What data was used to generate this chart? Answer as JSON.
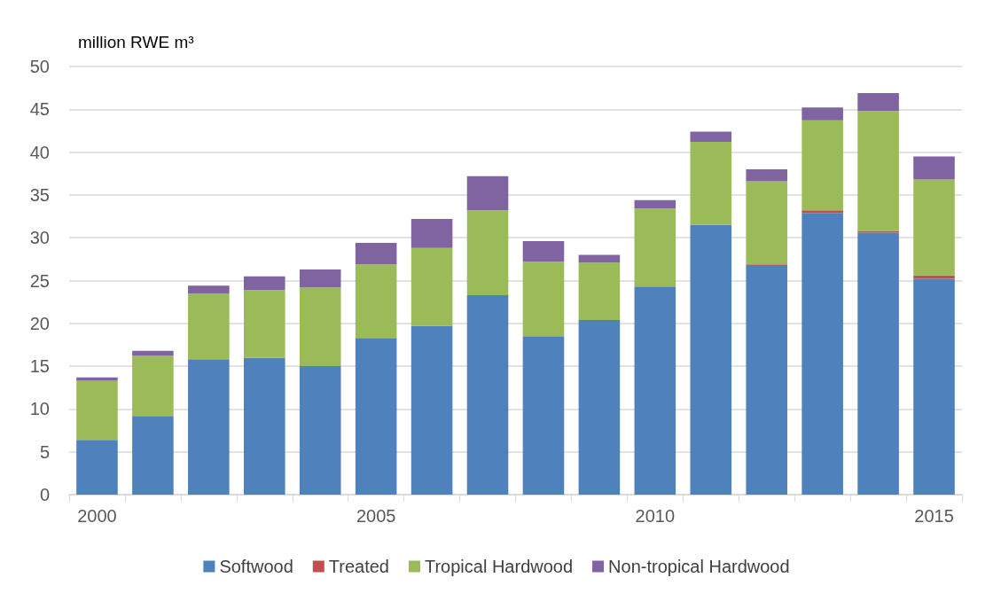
{
  "chart_data": {
    "type": "bar",
    "stacked": true,
    "ylabel": "million RWE m³",
    "categories": [
      "2000",
      null,
      null,
      null,
      null,
      "2005",
      null,
      null,
      null,
      null,
      "2010",
      null,
      null,
      null,
      null,
      "2015"
    ],
    "series": [
      {
        "name": "Softwood",
        "color": "#4f81bd",
        "values": [
          6.4,
          9.2,
          15.8,
          16.0,
          15.0,
          18.3,
          19.7,
          23.3,
          18.5,
          20.4,
          24.3,
          31.5,
          26.8,
          32.9,
          30.6,
          25.2
        ]
      },
      {
        "name": "Treated",
        "color": "#c0504d",
        "values": [
          0,
          0,
          0,
          0,
          0,
          0,
          0,
          0,
          0,
          0,
          0,
          0,
          0.1,
          0.3,
          0.2,
          0.4
        ]
      },
      {
        "name": "Tropical Hardwood",
        "color": "#9bbb59",
        "values": [
          6.9,
          7.0,
          7.7,
          7.9,
          9.2,
          8.6,
          9.1,
          9.9,
          8.7,
          6.7,
          9.1,
          9.7,
          9.7,
          10.5,
          14.0,
          11.2
        ]
      },
      {
        "name": "Non-tropical Hardwood",
        "color": "#8064a2",
        "values": [
          0.4,
          0.6,
          0.9,
          1.6,
          2.1,
          2.5,
          3.4,
          4.0,
          2.4,
          0.9,
          1.0,
          1.2,
          1.4,
          1.5,
          2.1,
          2.7
        ]
      }
    ],
    "ylim": [
      0,
      50
    ],
    "yticks": [
      0,
      5,
      10,
      15,
      20,
      25,
      30,
      35,
      40,
      45,
      50
    ],
    "grid": "y",
    "legend": "bottom"
  }
}
